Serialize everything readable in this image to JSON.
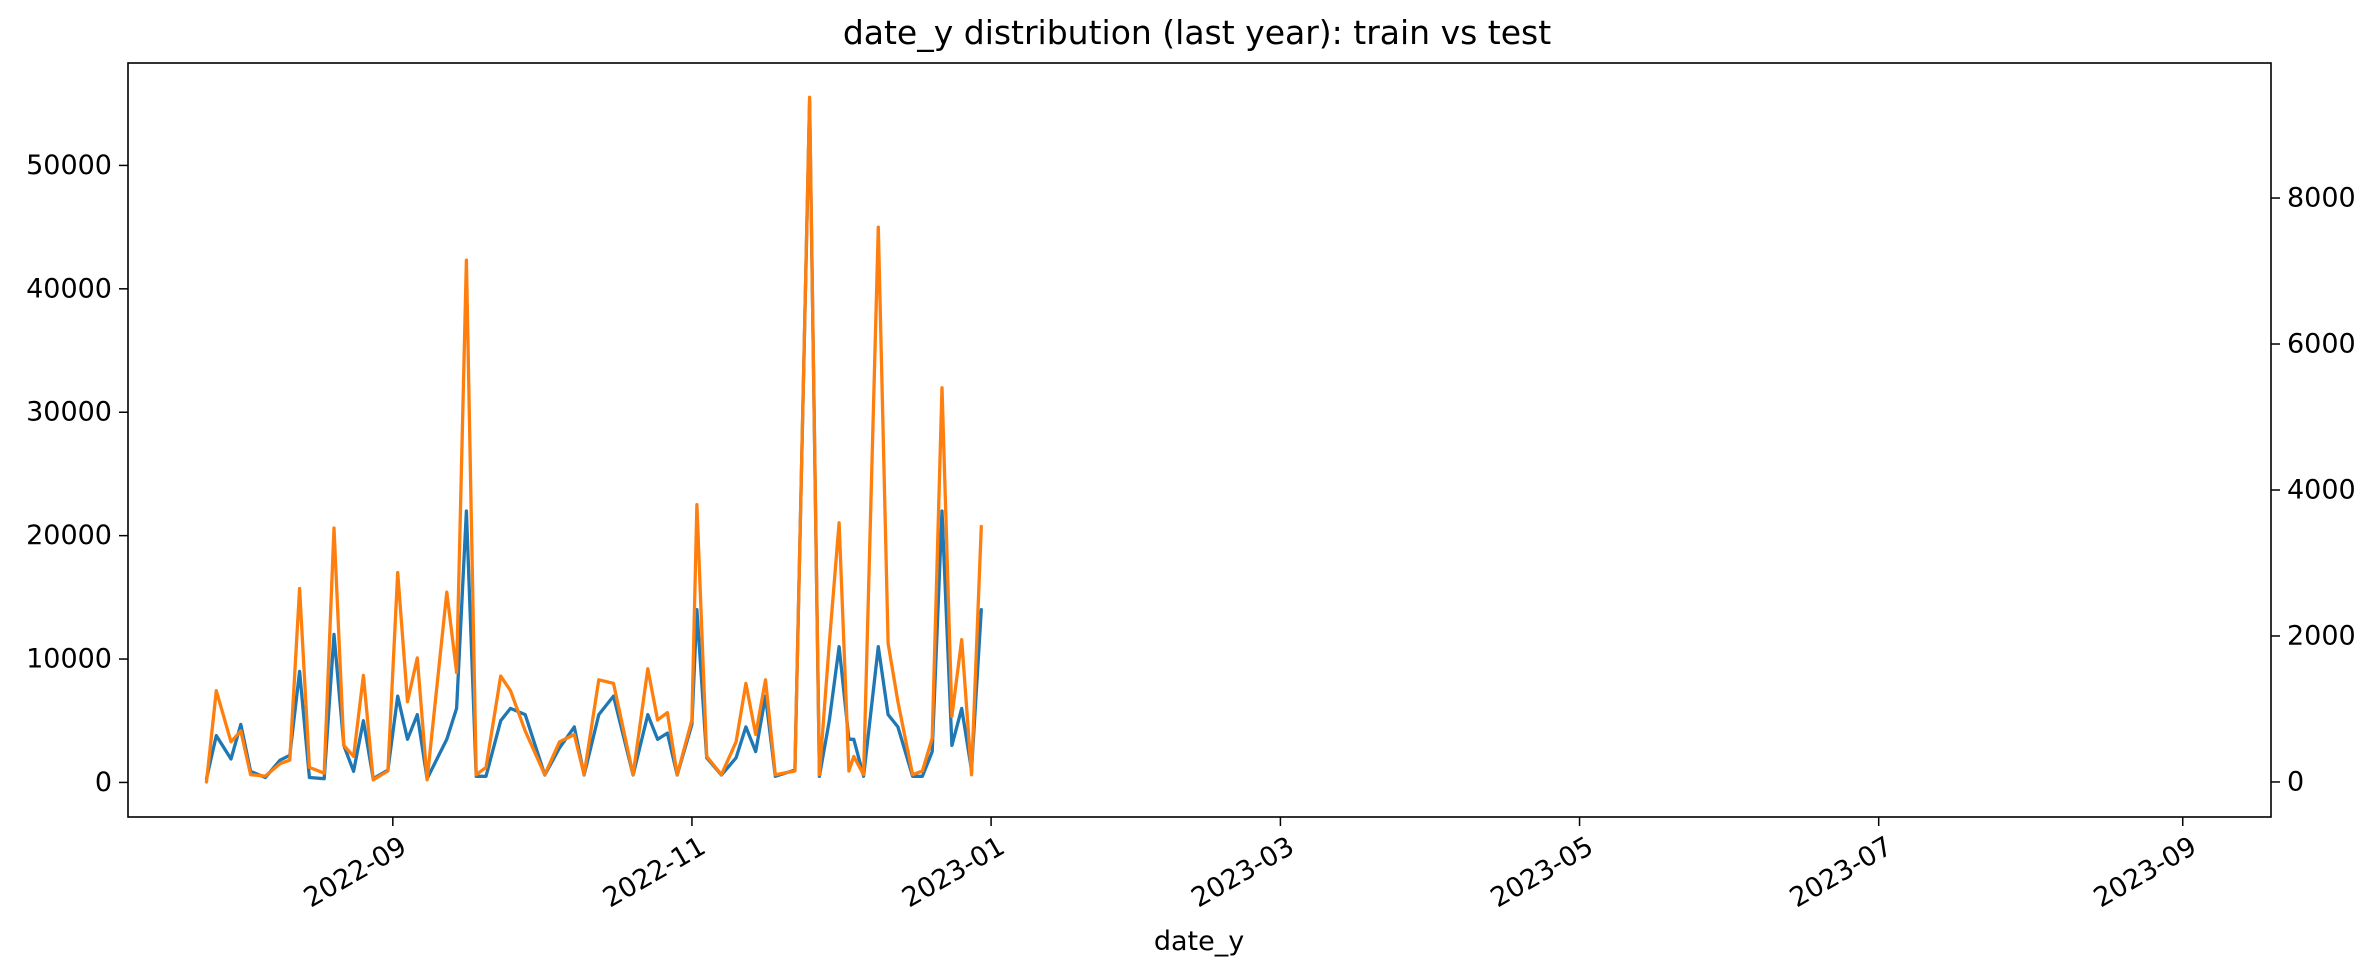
{
  "chart_data": {
    "type": "line",
    "title": "date_y distribution (last year): train vs test",
    "xlabel": "date_y",
    "ylabel": "",
    "ylabel_right": "",
    "x_range": [
      "2022-07-09",
      "2023-09-19"
    ],
    "x_ticks": [
      "2022-09",
      "2022-11",
      "2023-01",
      "2023-03",
      "2023-05",
      "2023-07",
      "2023-09"
    ],
    "ylim_left": [
      -2800,
      58300
    ],
    "yticks_left": [
      0,
      10000,
      20000,
      30000,
      40000,
      50000
    ],
    "ylim_right": [
      -480,
      9850
    ],
    "yticks_right": [
      0,
      2000,
      4000,
      6000,
      8000
    ],
    "legend": "none",
    "grid": false,
    "colors": {
      "train": "#1f77b4",
      "test": "#ff7f0e"
    },
    "series": [
      {
        "axis": "left",
        "color": "#1f77b4",
        "points": [
          [
            "2022-07-25",
            300
          ],
          [
            "2022-07-27",
            3800
          ],
          [
            "2022-07-30",
            1900
          ],
          [
            "2022-08-01",
            4700
          ],
          [
            "2022-08-03",
            900
          ],
          [
            "2022-08-06",
            400
          ],
          [
            "2022-08-09",
            1800
          ],
          [
            "2022-08-11",
            2200
          ],
          [
            "2022-08-13",
            9000
          ],
          [
            "2022-08-15",
            400
          ],
          [
            "2022-08-18",
            300
          ],
          [
            "2022-08-20",
            12000
          ],
          [
            "2022-08-22",
            3000
          ],
          [
            "2022-08-24",
            900
          ],
          [
            "2022-08-26",
            5000
          ],
          [
            "2022-08-28",
            300
          ],
          [
            "2022-08-31",
            1000
          ],
          [
            "2022-09-02",
            7000
          ],
          [
            "2022-09-04",
            3500
          ],
          [
            "2022-09-06",
            5500
          ],
          [
            "2022-09-08",
            300
          ],
          [
            "2022-09-12",
            3500
          ],
          [
            "2022-09-14",
            6000
          ],
          [
            "2022-09-16",
            22000
          ],
          [
            "2022-09-18",
            500
          ],
          [
            "2022-09-20",
            500
          ],
          [
            "2022-09-23",
            5000
          ],
          [
            "2022-09-25",
            6000
          ],
          [
            "2022-09-28",
            5500
          ],
          [
            "2022-10-02",
            600
          ],
          [
            "2022-10-05",
            2800
          ],
          [
            "2022-10-08",
            4500
          ],
          [
            "2022-10-10",
            600
          ],
          [
            "2022-10-13",
            5500
          ],
          [
            "2022-10-16",
            7000
          ],
          [
            "2022-10-20",
            600
          ],
          [
            "2022-10-23",
            5500
          ],
          [
            "2022-10-25",
            3500
          ],
          [
            "2022-10-27",
            4000
          ],
          [
            "2022-10-29",
            600
          ],
          [
            "2022-11-01",
            4700
          ],
          [
            "2022-11-02",
            14000
          ],
          [
            "2022-11-04",
            2000
          ],
          [
            "2022-11-07",
            600
          ],
          [
            "2022-11-10",
            2000
          ],
          [
            "2022-11-12",
            4500
          ],
          [
            "2022-11-14",
            2500
          ],
          [
            "2022-11-16",
            7000
          ],
          [
            "2022-11-18",
            500
          ],
          [
            "2022-11-22",
            1000
          ],
          [
            "2022-11-25",
            55200
          ],
          [
            "2022-11-27",
            500
          ],
          [
            "2022-11-29",
            5000
          ],
          [
            "2022-12-01",
            11000
          ],
          [
            "2022-12-03",
            3500
          ],
          [
            "2022-12-04",
            3500
          ],
          [
            "2022-12-06",
            500
          ],
          [
            "2022-12-09",
            11000
          ],
          [
            "2022-12-11",
            5500
          ],
          [
            "2022-12-13",
            4500
          ],
          [
            "2022-12-16",
            500
          ],
          [
            "2022-12-18",
            500
          ],
          [
            "2022-12-20",
            2500
          ],
          [
            "2022-12-22",
            22000
          ],
          [
            "2022-12-24",
            3000
          ],
          [
            "2022-12-26",
            6000
          ],
          [
            "2022-12-28",
            1000
          ],
          [
            "2022-12-30",
            14000
          ]
        ]
      },
      {
        "axis": "right",
        "color": "#ff7f0e",
        "points": [
          [
            "2022-07-25",
            0
          ],
          [
            "2022-07-27",
            1250
          ],
          [
            "2022-07-30",
            550
          ],
          [
            "2022-08-01",
            700
          ],
          [
            "2022-08-03",
            100
          ],
          [
            "2022-08-06",
            80
          ],
          [
            "2022-08-09",
            250
          ],
          [
            "2022-08-11",
            300
          ],
          [
            "2022-08-13",
            2650
          ],
          [
            "2022-08-15",
            200
          ],
          [
            "2022-08-18",
            120
          ],
          [
            "2022-08-20",
            3480
          ],
          [
            "2022-08-22",
            500
          ],
          [
            "2022-08-24",
            350
          ],
          [
            "2022-08-26",
            1460
          ],
          [
            "2022-08-28",
            30
          ],
          [
            "2022-08-31",
            150
          ],
          [
            "2022-09-02",
            2870
          ],
          [
            "2022-09-04",
            1100
          ],
          [
            "2022-09-06",
            1700
          ],
          [
            "2022-09-08",
            30
          ],
          [
            "2022-09-12",
            2600
          ],
          [
            "2022-09-14",
            1500
          ],
          [
            "2022-09-16",
            7150
          ],
          [
            "2022-09-18",
            100
          ],
          [
            "2022-09-20",
            200
          ],
          [
            "2022-09-23",
            1450
          ],
          [
            "2022-09-25",
            1250
          ],
          [
            "2022-09-28",
            700
          ],
          [
            "2022-10-02",
            100
          ],
          [
            "2022-10-05",
            550
          ],
          [
            "2022-10-08",
            650
          ],
          [
            "2022-10-10",
            100
          ],
          [
            "2022-10-13",
            1400
          ],
          [
            "2022-10-16",
            1350
          ],
          [
            "2022-10-20",
            100
          ],
          [
            "2022-10-23",
            1550
          ],
          [
            "2022-10-25",
            850
          ],
          [
            "2022-10-27",
            950
          ],
          [
            "2022-10-29",
            100
          ],
          [
            "2022-11-01",
            850
          ],
          [
            "2022-11-02",
            3800
          ],
          [
            "2022-11-04",
            350
          ],
          [
            "2022-11-07",
            100
          ],
          [
            "2022-11-10",
            550
          ],
          [
            "2022-11-12",
            1350
          ],
          [
            "2022-11-14",
            650
          ],
          [
            "2022-11-16",
            1400
          ],
          [
            "2022-11-18",
            100
          ],
          [
            "2022-11-22",
            150
          ],
          [
            "2022-11-25",
            9380
          ],
          [
            "2022-11-27",
            100
          ],
          [
            "2022-11-29",
            1900
          ],
          [
            "2022-12-01",
            3550
          ],
          [
            "2022-12-03",
            150
          ],
          [
            "2022-12-04",
            350
          ],
          [
            "2022-12-06",
            100
          ],
          [
            "2022-12-09",
            7600
          ],
          [
            "2022-12-11",
            1900
          ],
          [
            "2022-12-13",
            1100
          ],
          [
            "2022-12-16",
            100
          ],
          [
            "2022-12-18",
            150
          ],
          [
            "2022-12-20",
            600
          ],
          [
            "2022-12-22",
            5400
          ],
          [
            "2022-12-24",
            900
          ],
          [
            "2022-12-26",
            1950
          ],
          [
            "2022-12-28",
            100
          ],
          [
            "2022-12-30",
            3500
          ]
        ]
      }
    ]
  }
}
